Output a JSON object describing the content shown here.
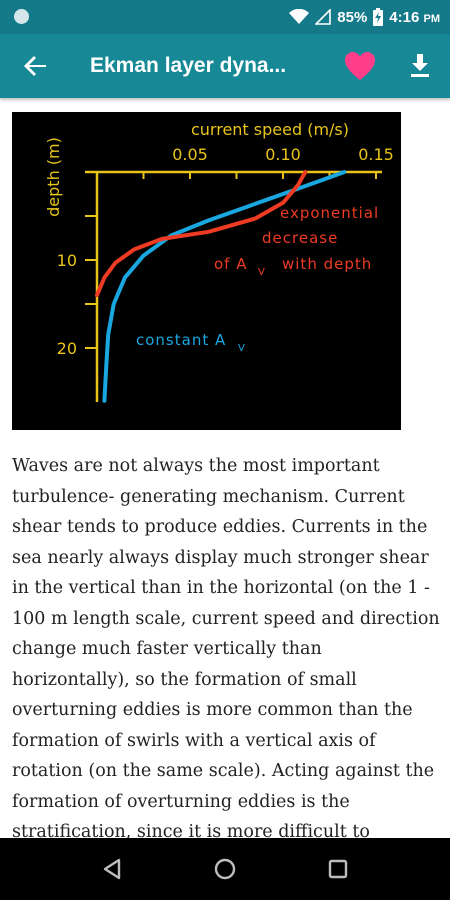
{
  "status_bar": {
    "battery": "85%",
    "time": "4:16",
    "ampm": "PM"
  },
  "app_bar": {
    "title": "Ekman layer dyna...",
    "back_icon": "arrow-back-icon",
    "favorite_icon": "heart-icon",
    "download_icon": "download-icon",
    "colors": {
      "bar": "#178896",
      "status": "#147a8a",
      "heart": "#ff3d8b"
    }
  },
  "figure": {
    "x_title": "current speed (m/s)",
    "y_title": "depth (m)",
    "chart_data": {
      "type": "line",
      "title": "",
      "xlabel": "current speed (m/s)",
      "ylabel": "depth (m)",
      "x_ticks": [
        "0.05",
        "0.10",
        "0.15"
      ],
      "y_ticks": [
        "10",
        "20"
      ],
      "xlim": [
        0.0,
        0.15
      ],
      "ylim": [
        0,
        25
      ],
      "series": [
        {
          "name": "constant Av",
          "color": "#1aa7e0",
          "x": [
            0.133,
            0.12,
            0.1,
            0.08,
            0.06,
            0.04,
            0.025,
            0.015,
            0.009,
            0.006,
            0.005,
            0.004
          ],
          "y": [
            0,
            1,
            2.5,
            4,
            5.5,
            7.2,
            9.5,
            12,
            15,
            18.5,
            22,
            26
          ]
        },
        {
          "name": "exponential decrease of Av with depth",
          "color": "#ef3b24",
          "x": [
            0.112,
            0.108,
            0.1,
            0.085,
            0.06,
            0.035,
            0.02,
            0.01,
            0.004,
            0.0
          ],
          "y": [
            0,
            1.5,
            3.5,
            5.3,
            6.8,
            7.6,
            8.8,
            10.3,
            12,
            14
          ]
        }
      ],
      "annotations": [
        {
          "lines": [
            "exponential",
            "decrease",
            "of A",
            "V",
            "with depth"
          ],
          "color": "#ef3b24"
        },
        {
          "lines": [
            "constant A",
            "V"
          ],
          "color": "#1aa7e0"
        }
      ]
    }
  },
  "article": {
    "text": "Waves are not always the most important turbulence- generating mechanism. Current shear tends to produce eddies. Currents in the sea nearly always display much stronger shear in the vertical than in the horizontal (on the 1 - 100 m length scale, current speed and direction change much faster vertically than horizontally), so the formation of small overturning eddies is more common than the formation of swirls with a vertical axis of rotation (on the same scale). Acting against the formation of overturning eddies is the stratification, since it is more difficult to"
  },
  "nav_bar": {
    "back_icon": "nav-back-triangle-icon",
    "home_icon": "nav-home-circle-icon",
    "recents_icon": "nav-recents-square-icon"
  }
}
